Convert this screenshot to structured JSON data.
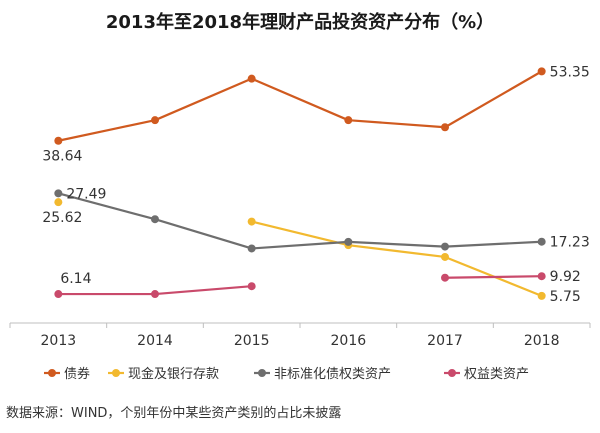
{
  "chart_data": {
    "type": "line",
    "title": "2013年至2018年理财产品投资资产分布（%）",
    "categories": [
      "2013",
      "2014",
      "2015",
      "2016",
      "2017",
      "2018"
    ],
    "ylim": [
      0,
      60
    ],
    "grid": false,
    "legend_position": "bottom",
    "series": [
      {
        "name": "债券",
        "color": "#d05a1f",
        "values": [
          38.64,
          43.0,
          51.8,
          43.0,
          41.5,
          53.35
        ],
        "labels": [
          {
            "index": 0,
            "text": "38.64",
            "pos": "below"
          },
          {
            "index": 5,
            "text": "53.35",
            "pos": "right"
          }
        ]
      },
      {
        "name": "现金及银行存款",
        "color": "#f2b92f",
        "values": [
          25.62,
          null,
          21.5,
          16.5,
          14.0,
          5.75
        ],
        "labels": [
          {
            "index": 0,
            "text": "25.62",
            "pos": "below"
          },
          {
            "index": 5,
            "text": "5.75",
            "pos": "right"
          }
        ]
      },
      {
        "name": "非标准化债权类资产",
        "color": "#6e6e6e",
        "values": [
          27.49,
          22.0,
          15.8,
          17.2,
          16.2,
          17.23
        ],
        "labels": [
          {
            "index": 0,
            "text": "27.49",
            "pos": "right"
          },
          {
            "index": 5,
            "text": "17.23",
            "pos": "right"
          }
        ]
      },
      {
        "name": "权益类资产",
        "color": "#c94a6b",
        "values": [
          6.14,
          6.14,
          7.8,
          null,
          9.6,
          9.92
        ],
        "labels": [
          {
            "index": 0,
            "text": "6.14",
            "pos": "above"
          },
          {
            "index": 5,
            "text": "9.92",
            "pos": "right"
          }
        ]
      }
    ]
  },
  "source_note": "数据来源：WIND，个别年份中某些资产类别的占比未披露"
}
